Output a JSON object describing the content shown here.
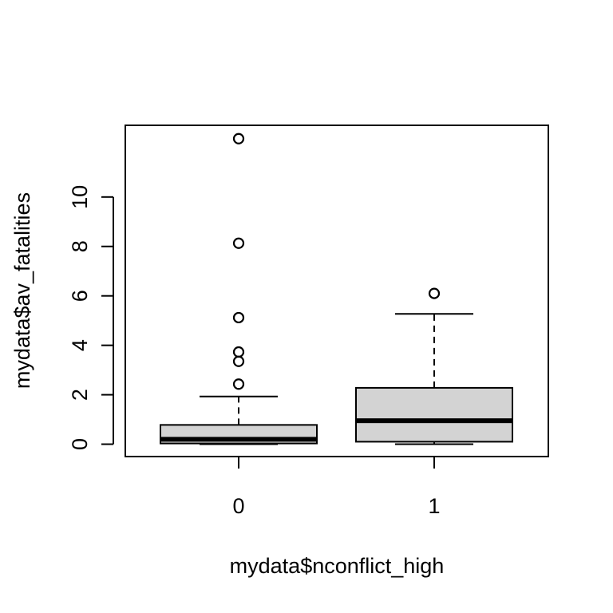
{
  "chart_data": {
    "type": "boxplot",
    "xlabel": "mydata$nconflict_high",
    "ylabel": "mydata$av_fatalities",
    "ylim": [
      -0.5,
      12.9
    ],
    "yticks": [
      0,
      2,
      4,
      6,
      8,
      10
    ],
    "grid": false,
    "legend": "none",
    "box_fill": "#d3d3d3",
    "categories": [
      "0",
      "1"
    ],
    "boxes": [
      {
        "category": "0",
        "whisker_low": 0.0,
        "q1": 0.03,
        "median": 0.2,
        "q3": 0.78,
        "whisker_high": 1.93,
        "outliers": [
          2.43,
          3.35,
          3.73,
          5.12,
          8.13,
          12.36
        ]
      },
      {
        "category": "1",
        "whisker_low": 0.0,
        "q1": 0.1,
        "median": 0.95,
        "q3": 2.28,
        "whisker_high": 5.27,
        "outliers": [
          6.1
        ]
      }
    ]
  }
}
